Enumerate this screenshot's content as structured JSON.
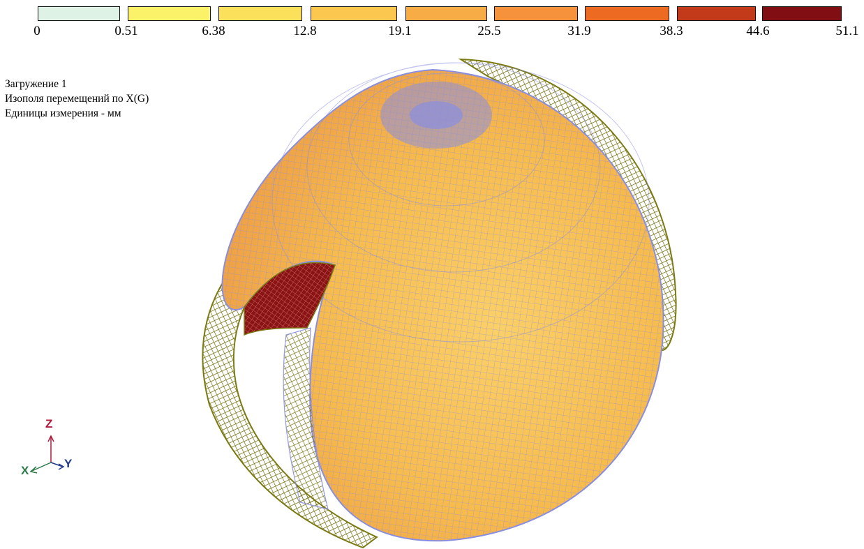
{
  "legend": {
    "ticks": [
      "0",
      "0.51",
      "6.38",
      "12.8",
      "19.1",
      "25.5",
      "31.9",
      "38.3",
      "44.6",
      "51.1"
    ],
    "colors": [
      "#dff2e6",
      "#fbf26a",
      "#fbe05c",
      "#fbc74e",
      "#f8ac45",
      "#f6923c",
      "#ec6a22",
      "#c33a1a",
      "#800e12"
    ]
  },
  "info": {
    "load_case": "Загружение 1",
    "isofield": "Изополя перемещений по X(G)",
    "units": "Единицы измерения - мм"
  },
  "axes": {
    "z": "Z",
    "x": "X",
    "y": "Y"
  },
  "model_colors": {
    "shell": "#f7bb4d",
    "shell_light": "#fbd068",
    "mesh": "#8a8ee0",
    "frame": "#7b7a12",
    "cut": "#8a1414"
  }
}
